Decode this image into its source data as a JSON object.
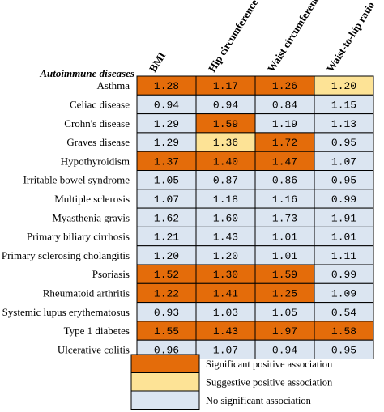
{
  "chart_data": {
    "type": "heatmap",
    "title": "Autoimmune diseases",
    "columns": [
      "BMI",
      "Hip circumference",
      "Waist circumference",
      "Waist-to-hip ratio"
    ],
    "rows": [
      {
        "label": "Asthma",
        "values": [
          "1.28",
          "1.17",
          "1.26",
          "1.20"
        ],
        "status": [
          "sig",
          "sig",
          "sig",
          "sug"
        ]
      },
      {
        "label": "Celiac disease",
        "values": [
          "0.94",
          "0.94",
          "0.84",
          "1.15"
        ],
        "status": [
          "none",
          "none",
          "none",
          "none"
        ]
      },
      {
        "label": "Crohn's disease",
        "values": [
          "1.29",
          "1.59",
          "1.19",
          "1.13"
        ],
        "status": [
          "none",
          "sig",
          "none",
          "none"
        ]
      },
      {
        "label": "Graves disease",
        "values": [
          "1.29",
          "1.36",
          "1.72",
          "0.95"
        ],
        "status": [
          "none",
          "sug",
          "sig",
          "none"
        ]
      },
      {
        "label": "Hypothyroidism",
        "values": [
          "1.37",
          "1.40",
          "1.47",
          "1.07"
        ],
        "status": [
          "sig",
          "sig",
          "sig",
          "none"
        ]
      },
      {
        "label": "Irritable bowel syndrome",
        "values": [
          "1.05",
          "0.87",
          "0.86",
          "0.95"
        ],
        "status": [
          "none",
          "none",
          "none",
          "none"
        ]
      },
      {
        "label": "Multiple sclerosis",
        "values": [
          "1.07",
          "1.18",
          "1.16",
          "0.99"
        ],
        "status": [
          "none",
          "none",
          "none",
          "none"
        ]
      },
      {
        "label": "Myasthenia gravis",
        "values": [
          "1.62",
          "1.60",
          "1.73",
          "1.91"
        ],
        "status": [
          "none",
          "none",
          "none",
          "none"
        ]
      },
      {
        "label": "Primary biliary cirrhosis",
        "values": [
          "1.21",
          "1.43",
          "1.01",
          "1.01"
        ],
        "status": [
          "none",
          "none",
          "none",
          "none"
        ]
      },
      {
        "label": "Primary sclerosing cholangitis",
        "values": [
          "1.20",
          "1.20",
          "1.01",
          "1.11"
        ],
        "status": [
          "none",
          "none",
          "none",
          "none"
        ]
      },
      {
        "label": "Psoriasis",
        "values": [
          "1.52",
          "1.30",
          "1.59",
          "0.99"
        ],
        "status": [
          "sig",
          "sig",
          "sig",
          "none"
        ]
      },
      {
        "label": "Rheumatoid arthritis",
        "values": [
          "1.22",
          "1.41",
          "1.25",
          "1.09"
        ],
        "status": [
          "sig",
          "sig",
          "sig",
          "none"
        ]
      },
      {
        "label": "Systemic lupus erythematosus",
        "values": [
          "0.93",
          "1.03",
          "1.05",
          "0.54"
        ],
        "status": [
          "none",
          "none",
          "none",
          "none"
        ]
      },
      {
        "label": "Type 1 diabetes",
        "values": [
          "1.55",
          "1.43",
          "1.97",
          "1.58"
        ],
        "status": [
          "sig",
          "sig",
          "sig",
          "sig"
        ]
      },
      {
        "label": "Ulcerative colitis",
        "values": [
          "0.96",
          "1.07",
          "0.94",
          "0.95"
        ],
        "status": [
          "none",
          "none",
          "none",
          "none"
        ]
      }
    ],
    "legend": [
      {
        "key": "sig",
        "label": "Significant positive association",
        "color": "#e46c0a"
      },
      {
        "key": "sug",
        "label": "Suggestive positive association",
        "color": "#fde396"
      },
      {
        "key": "none",
        "label": "No significant association",
        "color": "#dbe5f1"
      }
    ]
  }
}
